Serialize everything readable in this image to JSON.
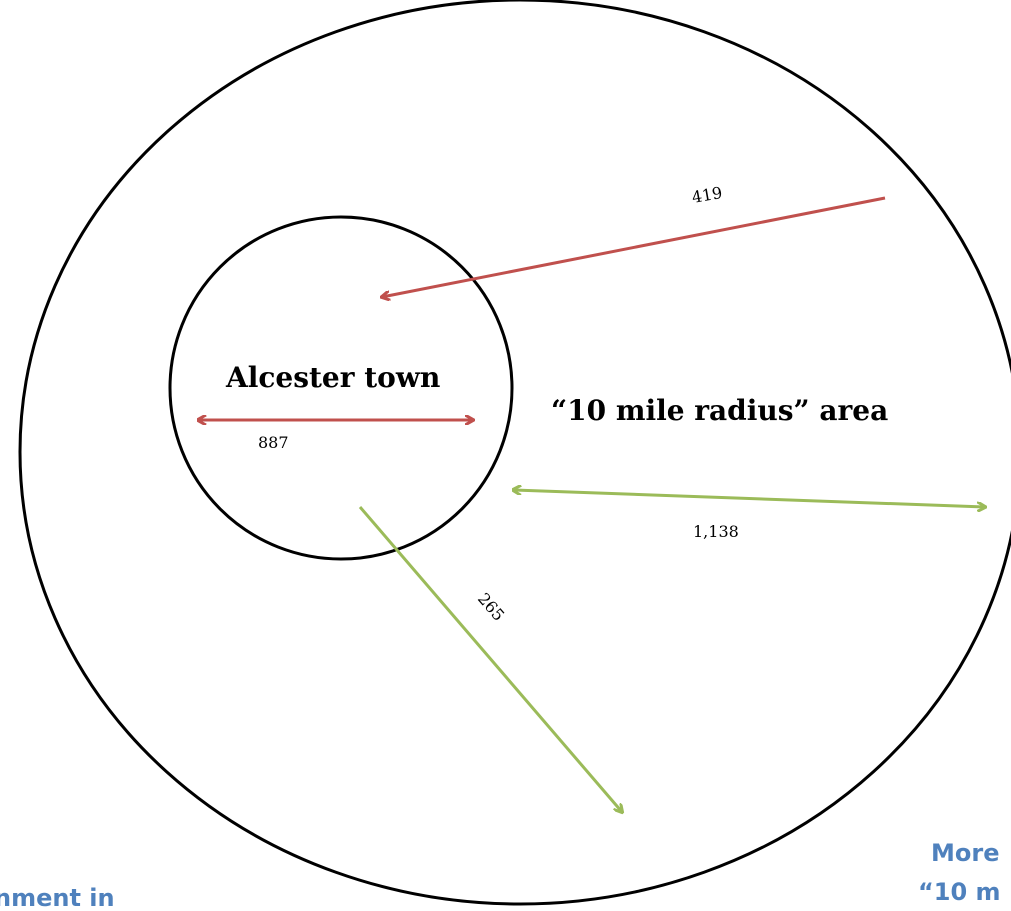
{
  "colors": {
    "outflow": "#c0504d",
    "inflow": "#9bbb59",
    "caption": "#4f81bd",
    "outline": "#000000"
  },
  "regions": {
    "town_label": "Alcester town",
    "area_label": "“10 mile radius” area"
  },
  "flows": {
    "into_town": "419",
    "within_town": "887",
    "area_to_town_edge": "1,138",
    "out_of_area": "265"
  },
  "captions": {
    "left_partial": "nment in",
    "right_line1_partial": "More",
    "right_line2_partial": "“10 m"
  }
}
